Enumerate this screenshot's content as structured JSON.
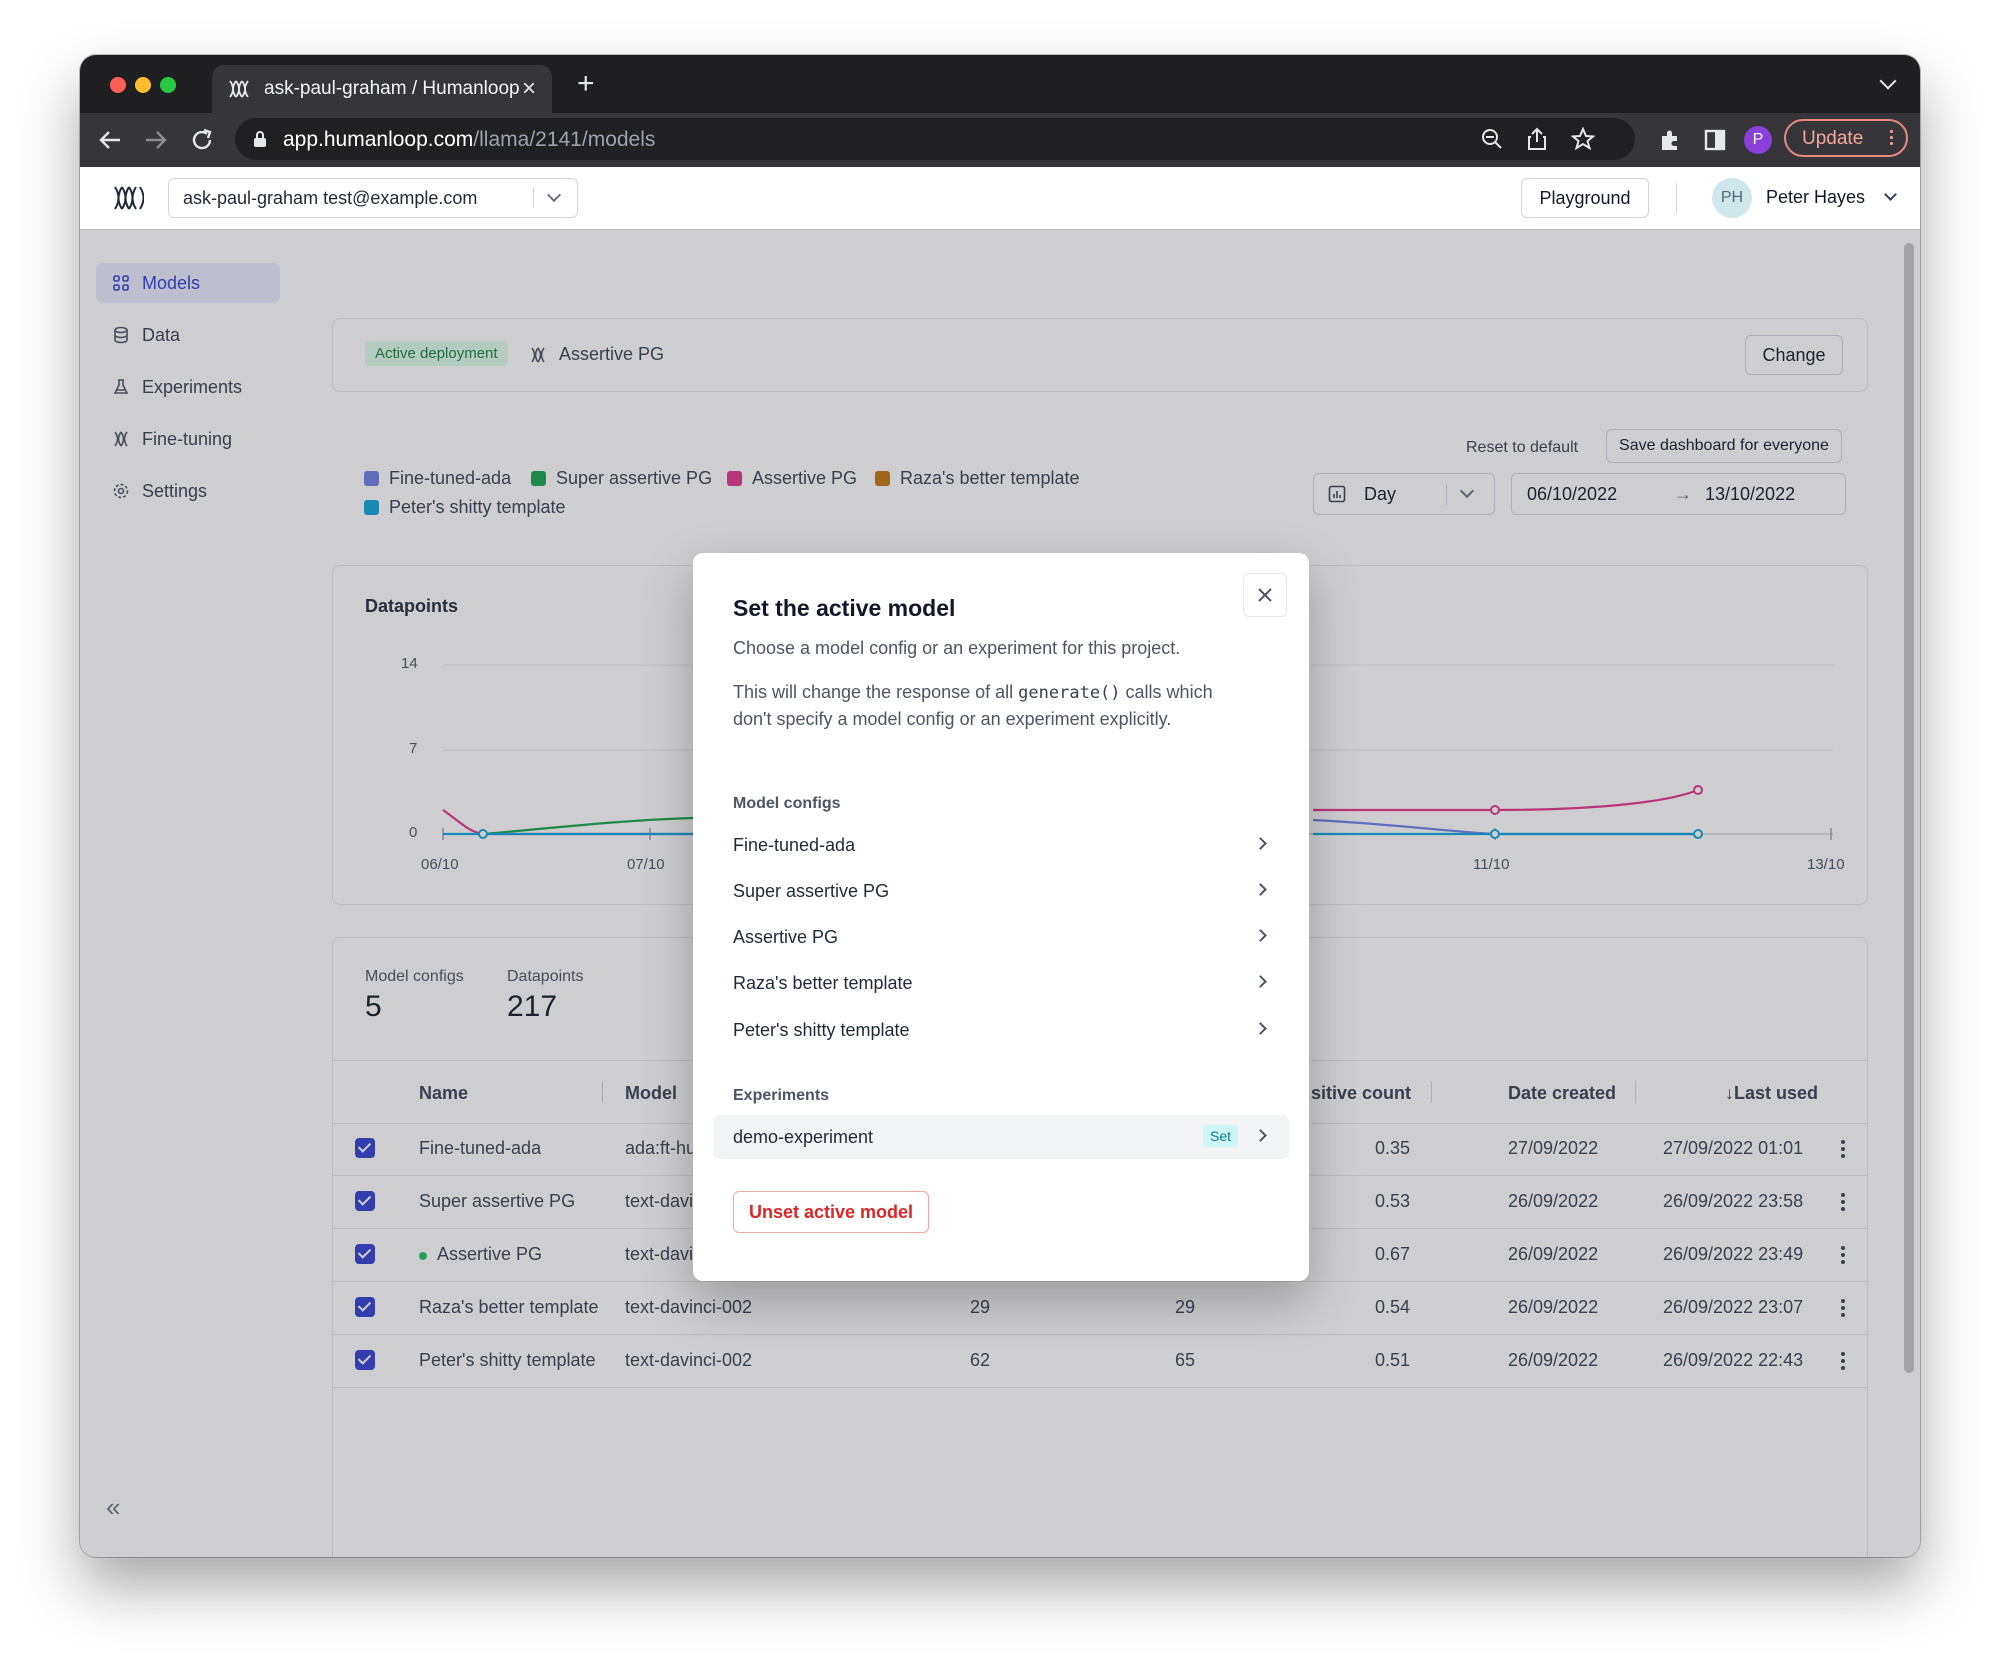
{
  "browser": {
    "tab_title": "ask-paul-graham / Humanloop",
    "tab_close": "×",
    "new_tab": "+",
    "url_host": "app.humanloop.com",
    "url_path": "/llama/2141/models",
    "update_label": "Update",
    "profile_initial": "P"
  },
  "topnav": {
    "project": "ask-paul-graham test@example.com",
    "playground": "Playground",
    "user_initials": "PH",
    "user_name": "Peter Hayes"
  },
  "sidebar": {
    "items": [
      {
        "label": "Models",
        "icon": "grid-icon"
      },
      {
        "label": "Data",
        "icon": "database-icon"
      },
      {
        "label": "Experiments",
        "icon": "flask-icon"
      },
      {
        "label": "Fine-tuning",
        "icon": "humanloop-logo-icon"
      },
      {
        "label": "Settings",
        "icon": "gear-icon"
      }
    ],
    "collapse": "«"
  },
  "deployment": {
    "badge": "Active deployment",
    "model": "Assertive PG",
    "change": "Change"
  },
  "dashboard": {
    "reset": "Reset to default",
    "save": "Save dashboard for everyone",
    "granularity": "Day",
    "date_from": "06/10/2022",
    "date_to": "13/10/2022",
    "arrow": "→"
  },
  "legend": [
    {
      "name": "Fine-tuned-ada",
      "color": "#6b7fe0"
    },
    {
      "name": "Super assertive PG",
      "color": "#16a34a"
    },
    {
      "name": "Assertive PG",
      "color": "#e0338a"
    },
    {
      "name": "Raza's better template",
      "color": "#c2760c"
    },
    {
      "name": "Peter's shitty template",
      "color": "#0ea5d9"
    }
  ],
  "chart_data": {
    "type": "line",
    "title": "Datapoints",
    "y_ticks": [
      "14",
      "7",
      "0"
    ],
    "ylim": [
      0,
      14
    ],
    "x_ticks_left": [
      "06/10",
      "07/10"
    ],
    "x_ticks_right": [
      "11/10",
      "13/10"
    ]
  },
  "stats": {
    "configs_label": "Model configs",
    "configs_value": "5",
    "datapoints_label": "Datapoints",
    "datapoints_value": "217"
  },
  "table": {
    "headers": {
      "name": "Name",
      "model": "Model",
      "positive": "sitive count",
      "created": "Date created",
      "last_used": "↓Last used"
    },
    "rows": [
      {
        "name": "Fine-tuned-ada",
        "model": "ada:ft-hu",
        "c1": "",
        "c2": "",
        "score": "0.35",
        "created": "27/09/2022",
        "last": "27/09/2022 01:01",
        "active": false
      },
      {
        "name": "Super assertive PG",
        "model": "text-davi",
        "c1": "",
        "c2": "",
        "score": "0.53",
        "created": "26/09/2022",
        "last": "26/09/2022 23:58",
        "active": false
      },
      {
        "name": "Assertive PG",
        "model": "text-davi",
        "c1": "",
        "c2": "",
        "score": "0.67",
        "created": "26/09/2022",
        "last": "26/09/2022 23:49",
        "active": true
      },
      {
        "name": "Raza's better template",
        "model": "text-davinci-002",
        "c1": "29",
        "c2": "29",
        "score": "0.54",
        "created": "26/09/2022",
        "last": "26/09/2022 23:07",
        "active": false
      },
      {
        "name": "Peter's shitty template",
        "model": "text-davinci-002",
        "c1": "62",
        "c2": "65",
        "score": "0.51",
        "created": "26/09/2022",
        "last": "26/09/2022 22:43",
        "active": false
      }
    ]
  },
  "modal": {
    "title": "Set the active model",
    "desc1": "Choose a model config or an experiment for this project.",
    "desc2a": "This will change the response of all",
    "desc2_code": "generate()",
    "desc2b": "calls which",
    "desc2c": "don't specify a model config or an experiment explicitly.",
    "configs_heading": "Model configs",
    "configs": [
      "Fine-tuned-ada",
      "Super assertive PG",
      "Assertive PG",
      "Raza's better template",
      "Peter's shitty template"
    ],
    "experiments_heading": "Experiments",
    "experiment": "demo-experiment",
    "set_badge": "Set",
    "unset": "Unset active model"
  }
}
